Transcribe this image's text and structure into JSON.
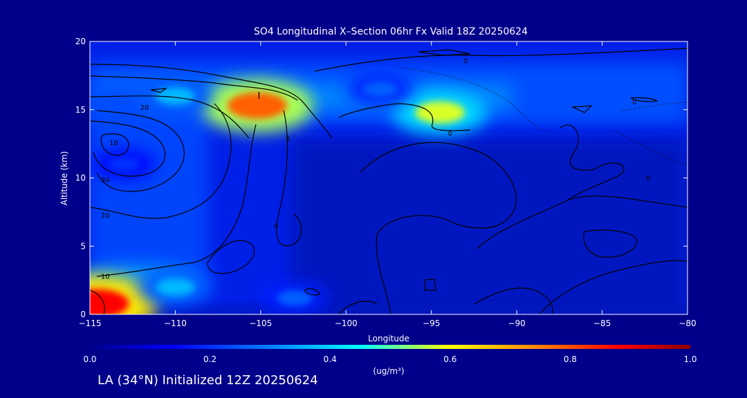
{
  "chart_data": {
    "type": "heatmap",
    "title": "SO4 Longitudinal X–Section 06hr  Fx Valid 18Z 20250624",
    "xlabel": "Longitude",
    "ylabel": "Altitude (km)",
    "xlim": [
      -115,
      -80
    ],
    "ylim": [
      0,
      20
    ],
    "x_ticks": [
      -115,
      -110,
      -105,
      -100,
      -95,
      -90,
      -85,
      -80
    ],
    "y_ticks": [
      0,
      5,
      10,
      15,
      20
    ],
    "colorbar": {
      "range": [
        0.0,
        1.0
      ],
      "ticks": [
        0.0,
        0.2,
        0.4,
        0.6,
        0.8,
        1.0
      ],
      "tick_labels": [
        "0.0",
        "0.2",
        "0.4",
        "0.6",
        "0.8",
        "1.0"
      ],
      "label": "(ug/m³)",
      "colors": [
        "#00008b",
        "#0000ff",
        "#0080ff",
        "#00ffff",
        "#ffff00",
        "#ff8000",
        "#ff0000",
        "#8b0000"
      ]
    },
    "concentration_features": [
      {
        "lon": -105.2,
        "alt": 15.3,
        "value": 0.75
      },
      {
        "lon": -94.5,
        "alt": 14.8,
        "value": 0.55
      },
      {
        "lon": -110,
        "alt": 16.0,
        "value": 0.35
      },
      {
        "lon": -114.6,
        "alt": 0.8,
        "value": 0.85
      },
      {
        "lon": -110,
        "alt": 2.0,
        "value": 0.35
      },
      {
        "lon": -103,
        "alt": 1.2,
        "value": 0.25
      },
      {
        "lon": -98,
        "alt": 16.5,
        "value": 0.25
      },
      {
        "lon": -113,
        "alt": 11.0,
        "value": 0.2
      }
    ],
    "contour_labels": [
      {
        "text": "20",
        "lon": -111.8,
        "alt": 15.2
      },
      {
        "text": "30",
        "lon": -114.1,
        "alt": 9.9
      },
      {
        "text": "20",
        "lon": -114.1,
        "alt": 7.3
      },
      {
        "text": "10",
        "lon": -114.1,
        "alt": 2.8
      },
      {
        "text": "10",
        "lon": -113.6,
        "alt": 12.6
      },
      {
        "text": "0",
        "lon": -93.9,
        "alt": 13.3
      },
      {
        "text": "0",
        "lon": -93.0,
        "alt": 18.6
      },
      {
        "text": "0",
        "lon": -83.1,
        "alt": 15.6
      },
      {
        "text": "0",
        "lon": -82.3,
        "alt": 10.0
      },
      {
        "text": "0",
        "lon": -104.1,
        "alt": 6.5
      },
      {
        "text": "5",
        "lon": -103.4,
        "alt": 12.9
      },
      {
        "text": "I",
        "lon": -105.1,
        "alt": 16.0
      }
    ]
  },
  "caption": "LA (34°N) Initialized 12Z 20250624",
  "colors": {
    "background": "#00008b",
    "text": "#ffffff",
    "contour": "#000000"
  }
}
